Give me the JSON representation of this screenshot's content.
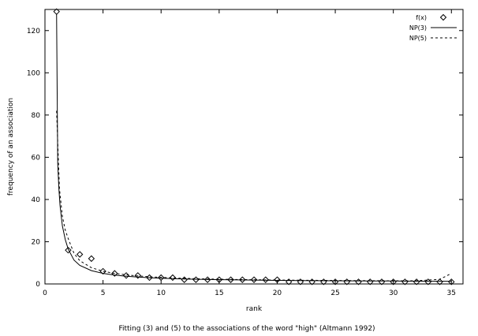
{
  "chart_data": {
    "type": "scatter",
    "title": "",
    "caption": "Fitting (3) and (5) to the associations of the word \"high\" (Altmann 1992)",
    "xlabel": "rank",
    "ylabel": "frequency of an association",
    "xlim": [
      0,
      36
    ],
    "ylim": [
      0,
      130
    ],
    "xticks": [
      0,
      5,
      10,
      15,
      20,
      25,
      30,
      35
    ],
    "yticks": [
      0,
      20,
      40,
      60,
      80,
      100,
      120
    ],
    "grid": false,
    "legend_position": "top-right",
    "series": [
      {
        "name": "f(x)",
        "style": "diamond-markers",
        "x": [
          1,
          2,
          3,
          4,
          5,
          6,
          7,
          8,
          9,
          10,
          11,
          12,
          13,
          14,
          15,
          16,
          17,
          18,
          19,
          20,
          21,
          22,
          23,
          24,
          25,
          26,
          27,
          28,
          29,
          30,
          31,
          32,
          33,
          34,
          35
        ],
        "y": [
          129,
          16,
          14,
          12,
          6,
          5,
          4,
          4,
          3,
          3,
          3,
          2,
          2,
          2,
          2,
          2,
          2,
          2,
          2,
          2,
          1,
          1,
          1,
          1,
          1,
          1,
          1,
          1,
          1,
          1,
          1,
          1,
          1,
          1,
          1
        ]
      },
      {
        "name": "NP(3)",
        "style": "solid-line",
        "x": [
          1,
          1.1,
          1.2,
          1.3,
          1.5,
          1.75,
          2,
          2.5,
          3,
          4,
          5,
          6,
          7,
          8,
          9,
          10,
          12,
          14,
          16,
          18,
          20,
          22,
          25,
          28,
          30,
          32,
          35
        ],
        "y": [
          128,
          57,
          45,
          37,
          27.5,
          21,
          16.5,
          11.3,
          8.8,
          6.3,
          5,
          4.2,
          3.65,
          3.25,
          2.95,
          2.7,
          2.35,
          2.1,
          1.95,
          1.8,
          1.7,
          1.6,
          1.5,
          1.42,
          1.38,
          1.33,
          1.28
        ]
      },
      {
        "name": "NP(5)",
        "style": "dashed-line",
        "x": [
          1,
          1.25,
          1.5,
          1.75,
          2,
          2.5,
          3,
          4,
          5,
          6,
          7,
          8,
          9,
          10,
          12,
          14,
          16,
          18,
          20,
          22,
          25,
          28,
          30,
          32,
          34,
          35
        ],
        "y": [
          82,
          45,
          32,
          25.5,
          21.5,
          14.5,
          11,
          7.7,
          6,
          5,
          4.3,
          3.8,
          3.4,
          3.1,
          2.65,
          2.35,
          2.15,
          2,
          1.85,
          1.75,
          1.65,
          1.55,
          1.5,
          1.5,
          2.2,
          5
        ]
      }
    ]
  }
}
